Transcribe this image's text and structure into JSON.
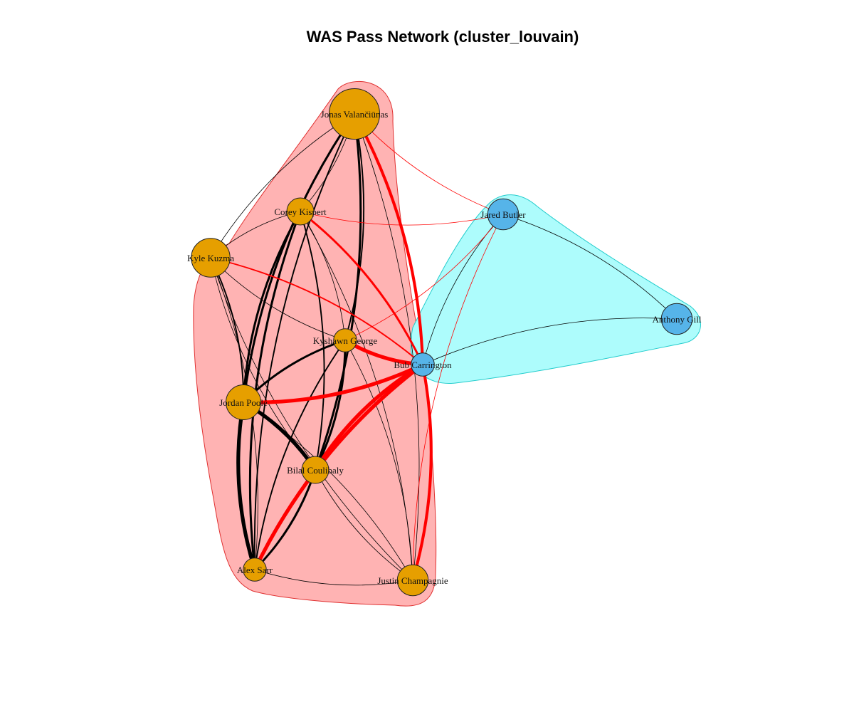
{
  "title": "WAS Pass Network (cluster_louvain)",
  "colors": {
    "cluster1_fill": "#ffb3b3",
    "cluster1_stroke": "#e03030",
    "cluster2_fill": "#adfcfc",
    "cluster2_stroke": "#22cccc",
    "node_cluster1": "#e69f00",
    "node_cluster2": "#56b4e9",
    "edge_within": "#000000",
    "edge_between": "#ff0000"
  },
  "clusters": [
    {
      "name": "cluster-1",
      "members": [
        "Jonas Valančiūnas",
        "Corey Kispert",
        "Kyle Kuzma",
        "Kyshawn George",
        "Jordan Poole",
        "Bilal Coulibaly",
        "Alex Sarr",
        "Justin Champagnie"
      ]
    },
    {
      "name": "cluster-2",
      "members": [
        "Jared Butler",
        "Anthony Gill",
        "Bub Carrington"
      ]
    }
  ],
  "nodes": [
    {
      "id": "jv",
      "label": "Jonas Valančiūnas",
      "cluster": 1,
      "size": 5
    },
    {
      "id": "ck",
      "label": "Corey Kispert",
      "cluster": 1,
      "size": 2
    },
    {
      "id": "kk",
      "label": "Kyle Kuzma",
      "cluster": 1,
      "size": 3.5
    },
    {
      "id": "kg",
      "label": "Kyshawn George",
      "cluster": 1,
      "size": 1.5
    },
    {
      "id": "jp",
      "label": "Jordan Poole",
      "cluster": 1,
      "size": 3
    },
    {
      "id": "bc",
      "label": "Bilal Coulibaly",
      "cluster": 1,
      "size": 2
    },
    {
      "id": "as",
      "label": "Alex Sarr",
      "cluster": 1,
      "size": 1.5
    },
    {
      "id": "jc",
      "label": "Justin Champagnie",
      "cluster": 1,
      "size": 2.5
    },
    {
      "id": "jb",
      "label": "Jared Butler",
      "cluster": 2,
      "size": 2.5
    },
    {
      "id": "ag",
      "label": "Anthony Gill",
      "cluster": 2,
      "size": 2.5
    },
    {
      "id": "bub",
      "label": "Bub Carrington",
      "cluster": 2,
      "size": 1.5
    }
  ],
  "edges": [
    {
      "from": "jv",
      "to": "ck",
      "weight": 1
    },
    {
      "from": "jv",
      "to": "kk",
      "weight": 1
    },
    {
      "from": "jv",
      "to": "kg",
      "weight": 2
    },
    {
      "from": "jv",
      "to": "jp",
      "weight": 3
    },
    {
      "from": "jv",
      "to": "bc",
      "weight": 3
    },
    {
      "from": "jv",
      "to": "as",
      "weight": 2
    },
    {
      "from": "jv",
      "to": "jc",
      "weight": 1
    },
    {
      "from": "jv",
      "to": "jb",
      "weight": 1
    },
    {
      "from": "jv",
      "to": "bub",
      "weight": 4
    },
    {
      "from": "ck",
      "to": "kk",
      "weight": 1
    },
    {
      "from": "ck",
      "to": "kg",
      "weight": 1
    },
    {
      "from": "ck",
      "to": "jp",
      "weight": 3
    },
    {
      "from": "ck",
      "to": "bc",
      "weight": 2
    },
    {
      "from": "ck",
      "to": "as",
      "weight": 3
    },
    {
      "from": "ck",
      "to": "jc",
      "weight": 1
    },
    {
      "from": "ck",
      "to": "jb",
      "weight": 1
    },
    {
      "from": "ck",
      "to": "bub",
      "weight": 3
    },
    {
      "from": "kk",
      "to": "kg",
      "weight": 1
    },
    {
      "from": "kk",
      "to": "jp",
      "weight": 2
    },
    {
      "from": "kk",
      "to": "bc",
      "weight": 1
    },
    {
      "from": "kk",
      "to": "as",
      "weight": 1
    },
    {
      "from": "kk",
      "to": "jc",
      "weight": 1
    },
    {
      "from": "kk",
      "to": "bub",
      "weight": 2
    },
    {
      "from": "kg",
      "to": "jp",
      "weight": 3
    },
    {
      "from": "kg",
      "to": "bc",
      "weight": 3
    },
    {
      "from": "kg",
      "to": "as",
      "weight": 2
    },
    {
      "from": "kg",
      "to": "jc",
      "weight": 1
    },
    {
      "from": "kg",
      "to": "bub",
      "weight": 5
    },
    {
      "from": "jp",
      "to": "bc",
      "weight": 5
    },
    {
      "from": "jp",
      "to": "as",
      "weight": 5
    },
    {
      "from": "jp",
      "to": "jc",
      "weight": 1
    },
    {
      "from": "jp",
      "to": "bub",
      "weight": 5
    },
    {
      "from": "bc",
      "to": "as",
      "weight": 3
    },
    {
      "from": "bc",
      "to": "jc",
      "weight": 1
    },
    {
      "from": "bc",
      "to": "bub",
      "weight": 5
    },
    {
      "from": "as",
      "to": "jc",
      "weight": 1
    },
    {
      "from": "as",
      "to": "bub",
      "weight": 5
    },
    {
      "from": "jc",
      "to": "bub",
      "weight": 4
    },
    {
      "from": "jc",
      "to": "jb",
      "weight": 1
    },
    {
      "from": "jb",
      "to": "bub",
      "weight": 1
    },
    {
      "from": "jb",
      "to": "ag",
      "weight": 1
    },
    {
      "from": "ag",
      "to": "bub",
      "weight": 1
    },
    {
      "from": "jb",
      "to": "kg",
      "weight": 1
    }
  ]
}
